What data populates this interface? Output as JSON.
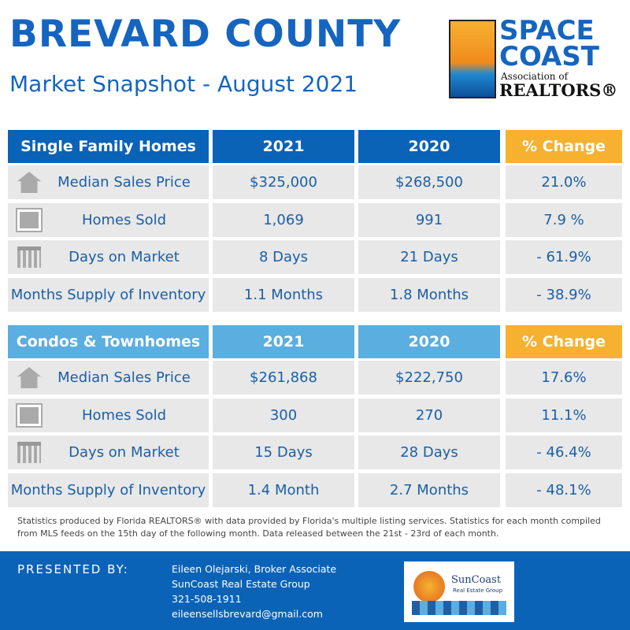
{
  "header": {
    "title": "BREVARD COUNTY",
    "subtitle": "Market Snapshot - August 2021"
  },
  "logo": {
    "line1": "SPACE",
    "line2": "COAST",
    "line3": "Association of",
    "line4": "REALTORS®"
  },
  "tables": [
    {
      "header": [
        "Single Family Homes",
        "2021",
        "2020",
        "% Change"
      ],
      "rows": [
        [
          "Median Sales Price",
          "$325,000",
          "$268,500",
          "21.0%"
        ],
        [
          "Homes Sold",
          "1,069",
          "991",
          "7.9 %"
        ],
        [
          "Days on Market",
          "8 Days",
          "21 Days",
          "- 61.9%"
        ],
        [
          "Months Supply of Inventory",
          "1.1 Months",
          "1.8 Months",
          "- 38.9%"
        ]
      ]
    },
    {
      "header": [
        "Condos & Townhomes",
        "2021",
        "2020",
        "% Change"
      ],
      "rows": [
        [
          "Median Sales Price",
          "$261,868",
          "$222,750",
          "17.6%"
        ],
        [
          "Homes Sold",
          "300",
          "270",
          "11.1%"
        ],
        [
          "Days on Market",
          "15 Days",
          "28 Days",
          "- 46.4%"
        ],
        [
          "Months Supply of Inventory",
          "1.4 Month",
          "2.7 Months",
          "- 48.1%"
        ]
      ]
    }
  ],
  "footnote": "Statistics produced by Florida REALTORS® with data provided by Florida's multiple listing services. Statistics for each month compiled from MLS feeds on the 15th day of the following month. Data released between the 21st - 23rd of each month.",
  "footer": {
    "label": "PRESENTED BY:",
    "contact": [
      "Eileen Olejarski, Broker Associate",
      "SunCoast Real Estate Group",
      "321-508-1911",
      "eileensellsbrevard@gmail.com"
    ],
    "logo_name": "SunCoast",
    "logo_sub": "Real Estate Group"
  }
}
